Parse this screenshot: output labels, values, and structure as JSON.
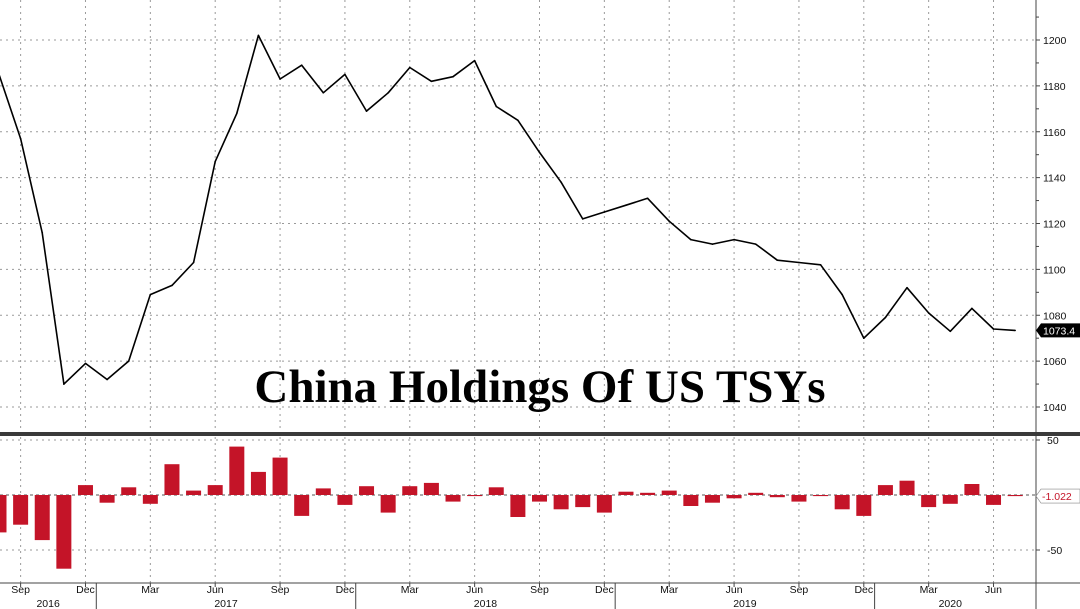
{
  "chart_data": [
    {
      "type": "line",
      "title": "China Holdings Of US TSYs",
      "x": [
        "2016-08",
        "2016-09",
        "2016-10",
        "2016-11",
        "2016-12",
        "2017-01",
        "2017-02",
        "2017-03",
        "2017-04",
        "2017-05",
        "2017-06",
        "2017-07",
        "2017-08",
        "2017-09",
        "2017-10",
        "2017-11",
        "2017-12",
        "2018-01",
        "2018-02",
        "2018-03",
        "2018-04",
        "2018-05",
        "2018-06",
        "2018-07",
        "2018-08",
        "2018-09",
        "2018-10",
        "2018-11",
        "2018-12",
        "2019-01",
        "2019-02",
        "2019-03",
        "2019-04",
        "2019-05",
        "2019-06",
        "2019-07",
        "2019-08",
        "2019-09",
        "2019-10",
        "2019-11",
        "2019-12",
        "2020-01",
        "2020-02",
        "2020-03",
        "2020-04",
        "2020-05",
        "2020-06",
        "2020-07"
      ],
      "values": [
        1185,
        1157,
        1116,
        1050,
        1059,
        1052,
        1060,
        1089,
        1093,
        1103,
        1147,
        1168,
        1202,
        1183,
        1189,
        1177,
        1185,
        1169,
        1177,
        1188,
        1182,
        1184,
        1191,
        1171,
        1165,
        1151,
        1138,
        1122,
        1125,
        1128,
        1131,
        1121,
        1113,
        1111,
        1113,
        1111,
        1104,
        1103,
        1102,
        1089,
        1070,
        1079,
        1092,
        1081,
        1073,
        1083,
        1074,
        1073.4
      ],
      "ylim": [
        1030,
        1220
      ],
      "yticks": [
        1040,
        1060,
        1080,
        1100,
        1120,
        1140,
        1160,
        1180,
        1200
      ],
      "last_value_label": "1073.4",
      "grid": true,
      "axis_side": "right"
    },
    {
      "type": "bar",
      "x": [
        "2016-08",
        "2016-09",
        "2016-10",
        "2016-11",
        "2016-12",
        "2017-01",
        "2017-02",
        "2017-03",
        "2017-04",
        "2017-05",
        "2017-06",
        "2017-07",
        "2017-08",
        "2017-09",
        "2017-10",
        "2017-11",
        "2017-12",
        "2018-01",
        "2018-02",
        "2018-03",
        "2018-04",
        "2018-05",
        "2018-06",
        "2018-07",
        "2018-08",
        "2018-09",
        "2018-10",
        "2018-11",
        "2018-12",
        "2019-01",
        "2019-02",
        "2019-03",
        "2019-04",
        "2019-05",
        "2019-06",
        "2019-07",
        "2019-08",
        "2019-09",
        "2019-10",
        "2019-11",
        "2019-12",
        "2020-01",
        "2020-02",
        "2020-03",
        "2020-04",
        "2020-05",
        "2020-06",
        "2020-07"
      ],
      "values": [
        -34,
        -27,
        -41,
        -67,
        9,
        -7,
        7,
        -8,
        28,
        4,
        9,
        44,
        21,
        34,
        -19,
        6,
        -9,
        8,
        -16,
        8,
        11,
        -6,
        -1,
        7,
        -20,
        -6,
        -13,
        -11,
        -16,
        3,
        2,
        4,
        -10,
        -7,
        -3,
        2,
        -2,
        -6,
        -1,
        -13,
        -19,
        9,
        13,
        -11,
        -8,
        10,
        -9,
        -1
      ],
      "ylim": [
        -75,
        55
      ],
      "yticks": [
        50,
        -50
      ],
      "last_value_label": "-1.022",
      "color": "#c41428",
      "grid": true,
      "axis_side": "right"
    }
  ],
  "x_axis": {
    "months": [
      {
        "label": "Sep",
        "idx": 1
      },
      {
        "label": "Dec",
        "idx": 4
      },
      {
        "label": "Mar",
        "idx": 7
      },
      {
        "label": "Jun",
        "idx": 10
      },
      {
        "label": "Sep",
        "idx": 13
      },
      {
        "label": "Dec",
        "idx": 16
      },
      {
        "label": "Mar",
        "idx": 19
      },
      {
        "label": "Jun",
        "idx": 22
      },
      {
        "label": "Sep",
        "idx": 25
      },
      {
        "label": "Dec",
        "idx": 28
      },
      {
        "label": "Mar",
        "idx": 31
      },
      {
        "label": "Jun",
        "idx": 34
      },
      {
        "label": "Sep",
        "idx": 37
      },
      {
        "label": "Dec",
        "idx": 40
      },
      {
        "label": "Mar",
        "idx": 43
      },
      {
        "label": "Jun",
        "idx": 46
      }
    ],
    "years": [
      {
        "label": "2016",
        "start": 0,
        "end": 4.5
      },
      {
        "label": "2017",
        "start": 4.5,
        "end": 16.5
      },
      {
        "label": "2018",
        "start": 16.5,
        "end": 28.5
      },
      {
        "label": "2019",
        "start": 28.5,
        "end": 40.5
      },
      {
        "label": "2020",
        "start": 40.5,
        "end": 47.5
      }
    ]
  },
  "colors": {
    "line": "#000000",
    "bar": "#c41428",
    "grid": "#9a9a9a",
    "divider": "#3a3a3a"
  }
}
